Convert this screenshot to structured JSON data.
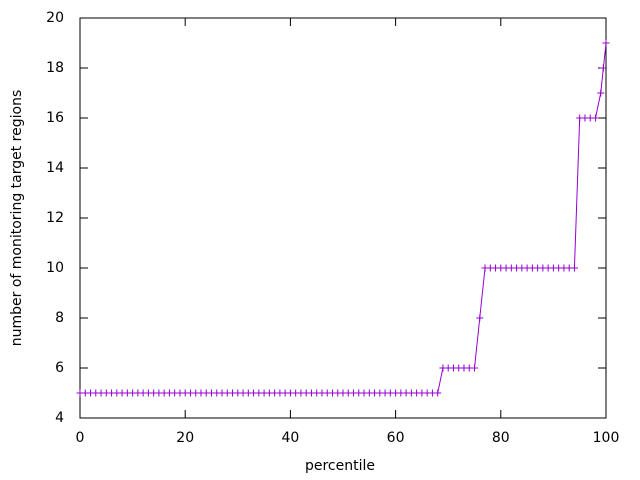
{
  "chart_data": {
    "type": "line",
    "xlabel": "percentile",
    "ylabel": "number of monitoring target regions",
    "x": [
      0,
      1,
      2,
      3,
      4,
      5,
      6,
      7,
      8,
      9,
      10,
      11,
      12,
      13,
      14,
      15,
      16,
      17,
      18,
      19,
      20,
      21,
      22,
      23,
      24,
      25,
      26,
      27,
      28,
      29,
      30,
      31,
      32,
      33,
      34,
      35,
      36,
      37,
      38,
      39,
      40,
      41,
      42,
      43,
      44,
      45,
      46,
      47,
      48,
      49,
      50,
      51,
      52,
      53,
      54,
      55,
      56,
      57,
      58,
      59,
      60,
      61,
      62,
      63,
      64,
      65,
      66,
      67,
      68,
      69,
      70,
      71,
      72,
      73,
      74,
      75,
      76,
      77,
      78,
      79,
      80,
      81,
      82,
      83,
      84,
      85,
      86,
      87,
      88,
      89,
      90,
      91,
      92,
      93,
      94,
      95,
      96,
      97,
      98,
      99,
      99.5,
      100
    ],
    "series": [
      {
        "color": "#9400d3",
        "values": [
          5,
          5,
          5,
          5,
          5,
          5,
          5,
          5,
          5,
          5,
          5,
          5,
          5,
          5,
          5,
          5,
          5,
          5,
          5,
          5,
          5,
          5,
          5,
          5,
          5,
          5,
          5,
          5,
          5,
          5,
          5,
          5,
          5,
          5,
          5,
          5,
          5,
          5,
          5,
          5,
          5,
          5,
          5,
          5,
          5,
          5,
          5,
          5,
          5,
          5,
          5,
          5,
          5,
          5,
          5,
          5,
          5,
          5,
          5,
          5,
          5,
          5,
          5,
          5,
          5,
          5,
          5,
          5,
          5,
          6,
          6,
          6,
          6,
          6,
          6,
          6,
          8,
          10,
          10,
          10,
          10,
          10,
          10,
          10,
          10,
          10,
          10,
          10,
          10,
          10,
          10,
          10,
          10,
          10,
          10,
          16,
          16,
          16,
          16,
          17,
          18,
          19
        ]
      }
    ],
    "xlim": [
      0,
      100
    ],
    "xticks": [
      0,
      20,
      40,
      60,
      80,
      100
    ],
    "ylim": [
      4,
      20
    ],
    "yticks": [
      4,
      6,
      8,
      10,
      12,
      14,
      16,
      18,
      20
    ],
    "grid": false
  }
}
